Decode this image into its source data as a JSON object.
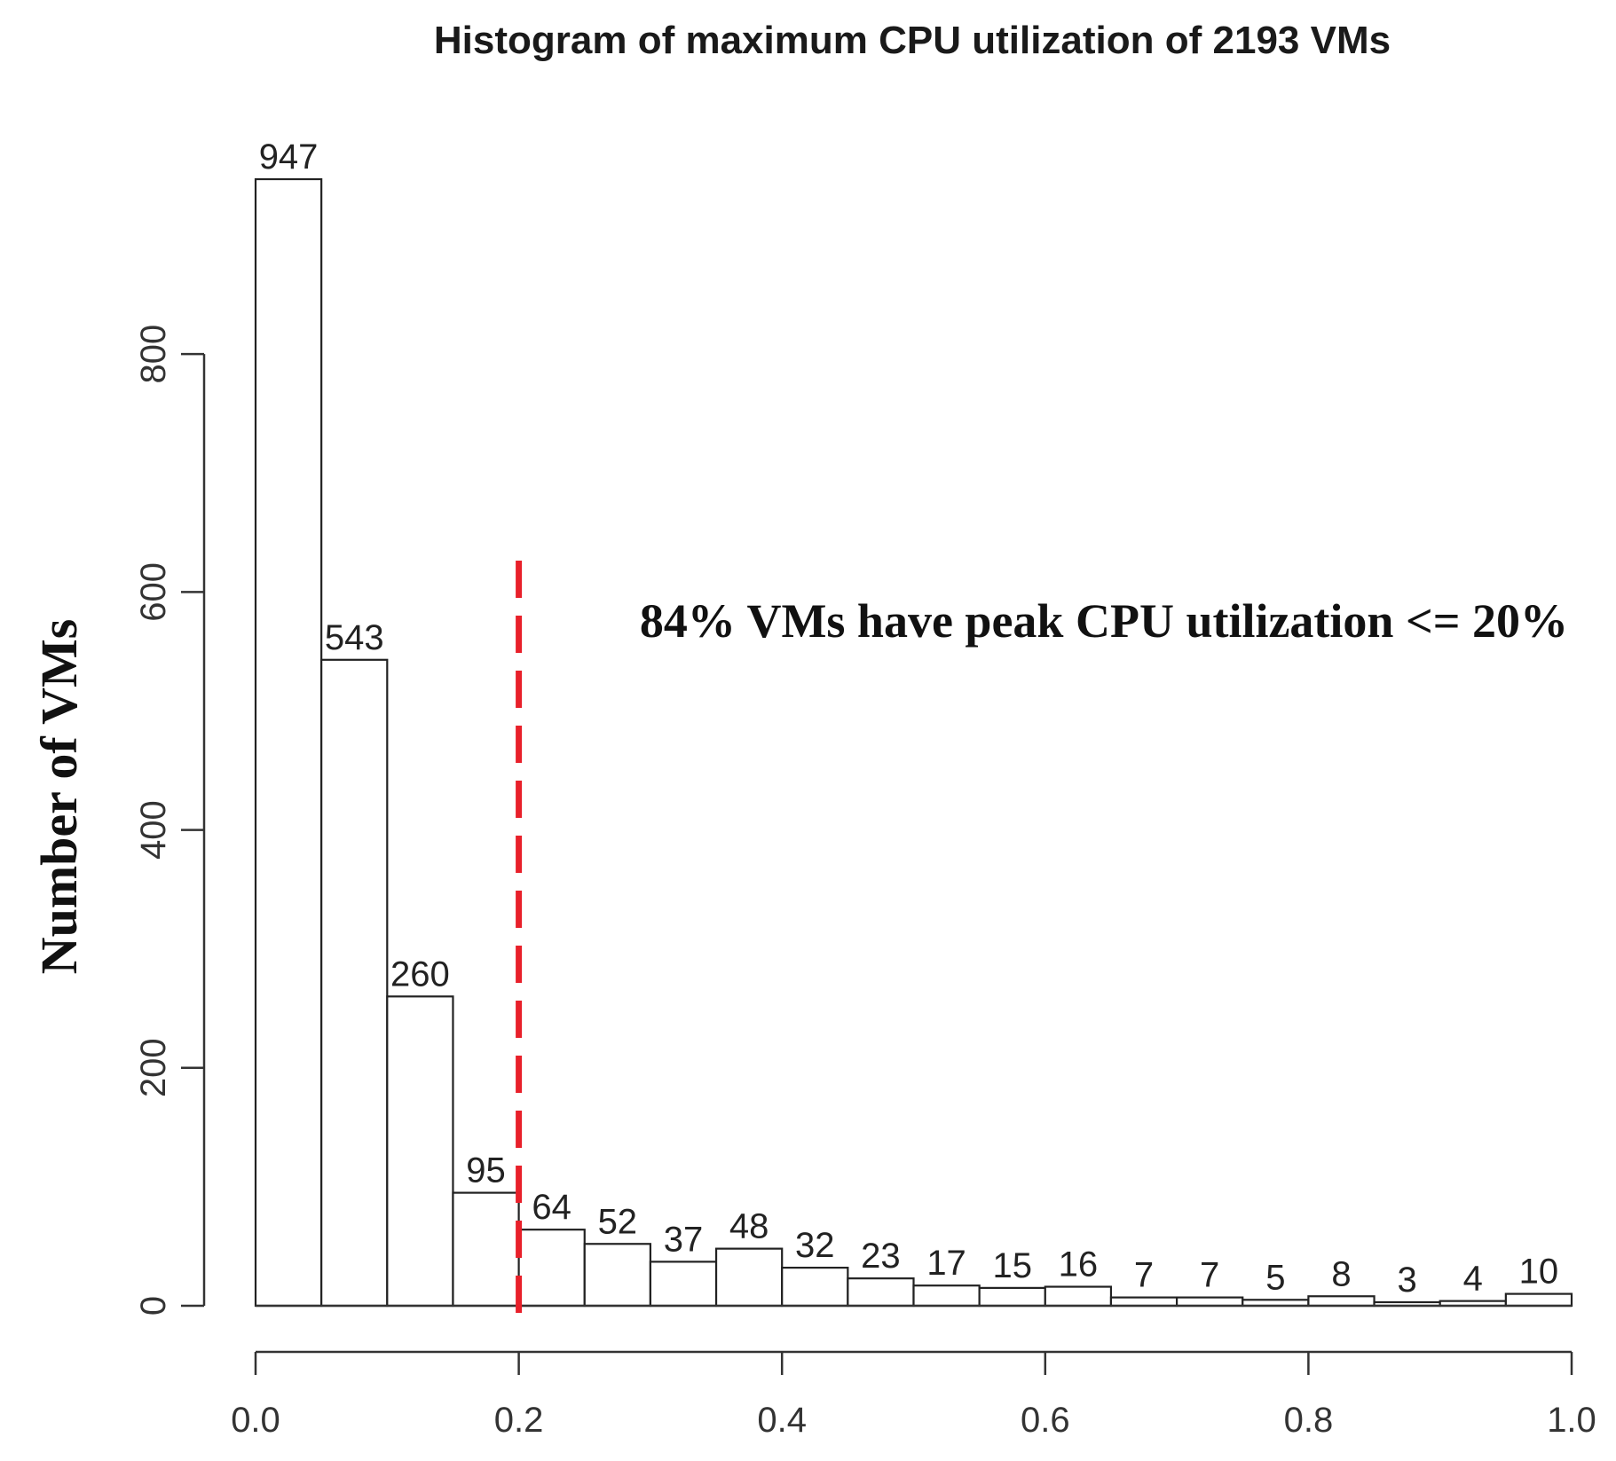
{
  "chart_data": {
    "type": "bar",
    "title": "Histogram of maximum CPU utilization of 2193 VMs",
    "xlabel": "",
    "ylabel": "Number of VMs",
    "bin_edges": [
      0.0,
      0.05,
      0.1,
      0.15,
      0.2,
      0.25,
      0.3,
      0.35,
      0.4,
      0.45,
      0.5,
      0.55,
      0.6,
      0.65,
      0.7,
      0.75,
      0.8,
      0.85,
      0.9,
      0.95,
      1.0
    ],
    "values": [
      947,
      543,
      260,
      95,
      64,
      52,
      37,
      48,
      32,
      23,
      17,
      15,
      16,
      7,
      7,
      5,
      8,
      3,
      4,
      10
    ],
    "data_labels": [
      "947",
      "543",
      "260",
      "95",
      "64",
      "52",
      "37",
      "48",
      "32",
      "23",
      "17",
      "15",
      "16",
      "7",
      "7",
      "5",
      "8",
      "3",
      "4",
      "10"
    ],
    "xlim": [
      0.0,
      1.0
    ],
    "ylim": [
      0,
      947
    ],
    "x_ticks": [
      0.0,
      0.2,
      0.4,
      0.6,
      0.8,
      1.0
    ],
    "x_tick_labels": [
      "0.0",
      "0.2",
      "0.4",
      "0.6",
      "0.8",
      "1.0"
    ],
    "y_ticks": [
      0,
      200,
      400,
      600,
      800
    ],
    "y_tick_labels": [
      "0",
      "200",
      "400",
      "600",
      "800"
    ],
    "grid": false,
    "reference_line": {
      "x": 0.2,
      "style": "dashed",
      "color": "#e8202a"
    },
    "annotation": "84% VMs have peak CPU utilization <= 20%"
  }
}
